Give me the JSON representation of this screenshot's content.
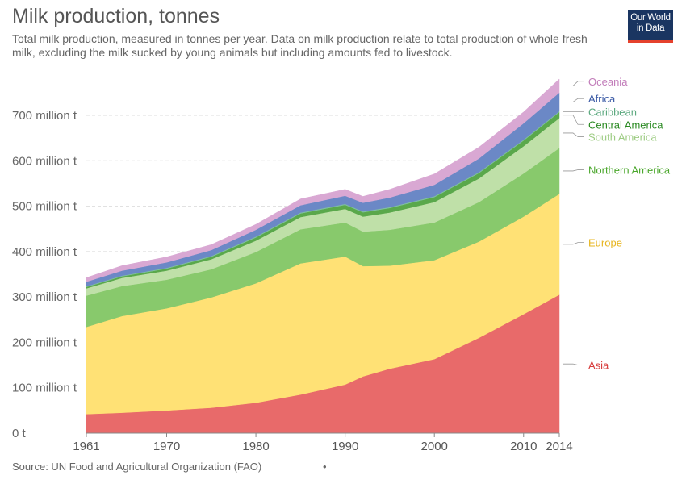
{
  "header": {
    "title": "Milk production, tonnes",
    "subtitle": "Total milk production, measured in tonnes per year. Data on milk production relate to total production of whole fresh milk, excluding the milk sucked by young animals but including amounts fed to livestock."
  },
  "logo": {
    "line1": "Our World",
    "line2": "in Data"
  },
  "footer": {
    "source": "Source: UN Food and Agricultural Organization (FAO)",
    "dot": "•"
  },
  "chart_data": {
    "type": "area",
    "stacked": true,
    "x": [
      1961,
      1965,
      1970,
      1975,
      1980,
      1985,
      1990,
      1992,
      1995,
      2000,
      2005,
      2010,
      2014
    ],
    "xticks": [
      1961,
      1970,
      1980,
      1990,
      2000,
      2010,
      2014
    ],
    "xtick_labels": [
      "1961",
      "1970",
      "1980",
      "1990",
      "2000",
      "2010",
      "2014"
    ],
    "ylim": [
      0,
      800000000
    ],
    "yticks": [
      0,
      100000000,
      200000000,
      300000000,
      400000000,
      500000000,
      600000000,
      700000000
    ],
    "ytick_labels": [
      "0 t",
      "100 million t",
      "200 million t",
      "300 million t",
      "400 million t",
      "500 million t",
      "600 million t",
      "700 million t"
    ],
    "grid": true,
    "legend_position": "right",
    "series": [
      {
        "name": "Asia",
        "color": "#e86a6a",
        "label_color": "#d73c3c",
        "label_y": 150000000,
        "values": [
          42000000,
          45000000,
          50000000,
          56000000,
          67000000,
          85000000,
          107000000,
          125000000,
          142000000,
          163000000,
          210000000,
          262000000,
          305000000
        ]
      },
      {
        "name": "Europe",
        "color": "#ffe175",
        "label_color": "#e7b51f",
        "label_y": 420000000,
        "values": [
          192000000,
          213000000,
          225000000,
          243000000,
          263000000,
          289000000,
          282000000,
          243000000,
          227000000,
          218000000,
          212000000,
          215000000,
          222000000
        ]
      },
      {
        "name": "Northern America",
        "color": "#88c96c",
        "label_color": "#4ba72c",
        "label_y": 580000000,
        "values": [
          69000000,
          66000000,
          63000000,
          62000000,
          69000000,
          75000000,
          75000000,
          76000000,
          79000000,
          83000000,
          87000000,
          95000000,
          101000000
        ]
      },
      {
        "name": "South America",
        "color": "#bfe0a8",
        "label_color": "#9dcc83",
        "label_y": 653000000,
        "values": [
          16000000,
          18000000,
          20000000,
          22000000,
          25000000,
          27000000,
          30000000,
          33000000,
          38000000,
          45000000,
          52000000,
          60000000,
          66000000
        ]
      },
      {
        "name": "Central America",
        "color": "#5aa84b",
        "label_color": "#2a8a22",
        "label_y": 680000000,
        "values": [
          3000000,
          3500000,
          4500000,
          5500000,
          7000000,
          8000000,
          9000000,
          9500000,
          10000000,
          11000000,
          12000000,
          12500000,
          13000000
        ]
      },
      {
        "name": "Caribbean",
        "color": "#7fc0a0",
        "label_color": "#5ca97f",
        "label_y": 708000000,
        "values": [
          1500000,
          1500000,
          1700000,
          1800000,
          2000000,
          2000000,
          2000000,
          2000000,
          2000000,
          2000000,
          2000000,
          2000000,
          2000000
        ]
      },
      {
        "name": "Africa",
        "color": "#6b88c6",
        "label_color": "#3c5ba6",
        "label_y": 737000000,
        "values": [
          10000000,
          11000000,
          12000000,
          13000000,
          15000000,
          16000000,
          18000000,
          19000000,
          21000000,
          25000000,
          30000000,
          36000000,
          41000000
        ]
      },
      {
        "name": "Oceania",
        "color": "#d9a8d3",
        "label_color": "#c27dba",
        "label_y": 775000000,
        "values": [
          9000000,
          11000000,
          12000000,
          12000000,
          12000000,
          14000000,
          14000000,
          14000000,
          18000000,
          24000000,
          25000000,
          25000000,
          30000000
        ]
      }
    ]
  }
}
